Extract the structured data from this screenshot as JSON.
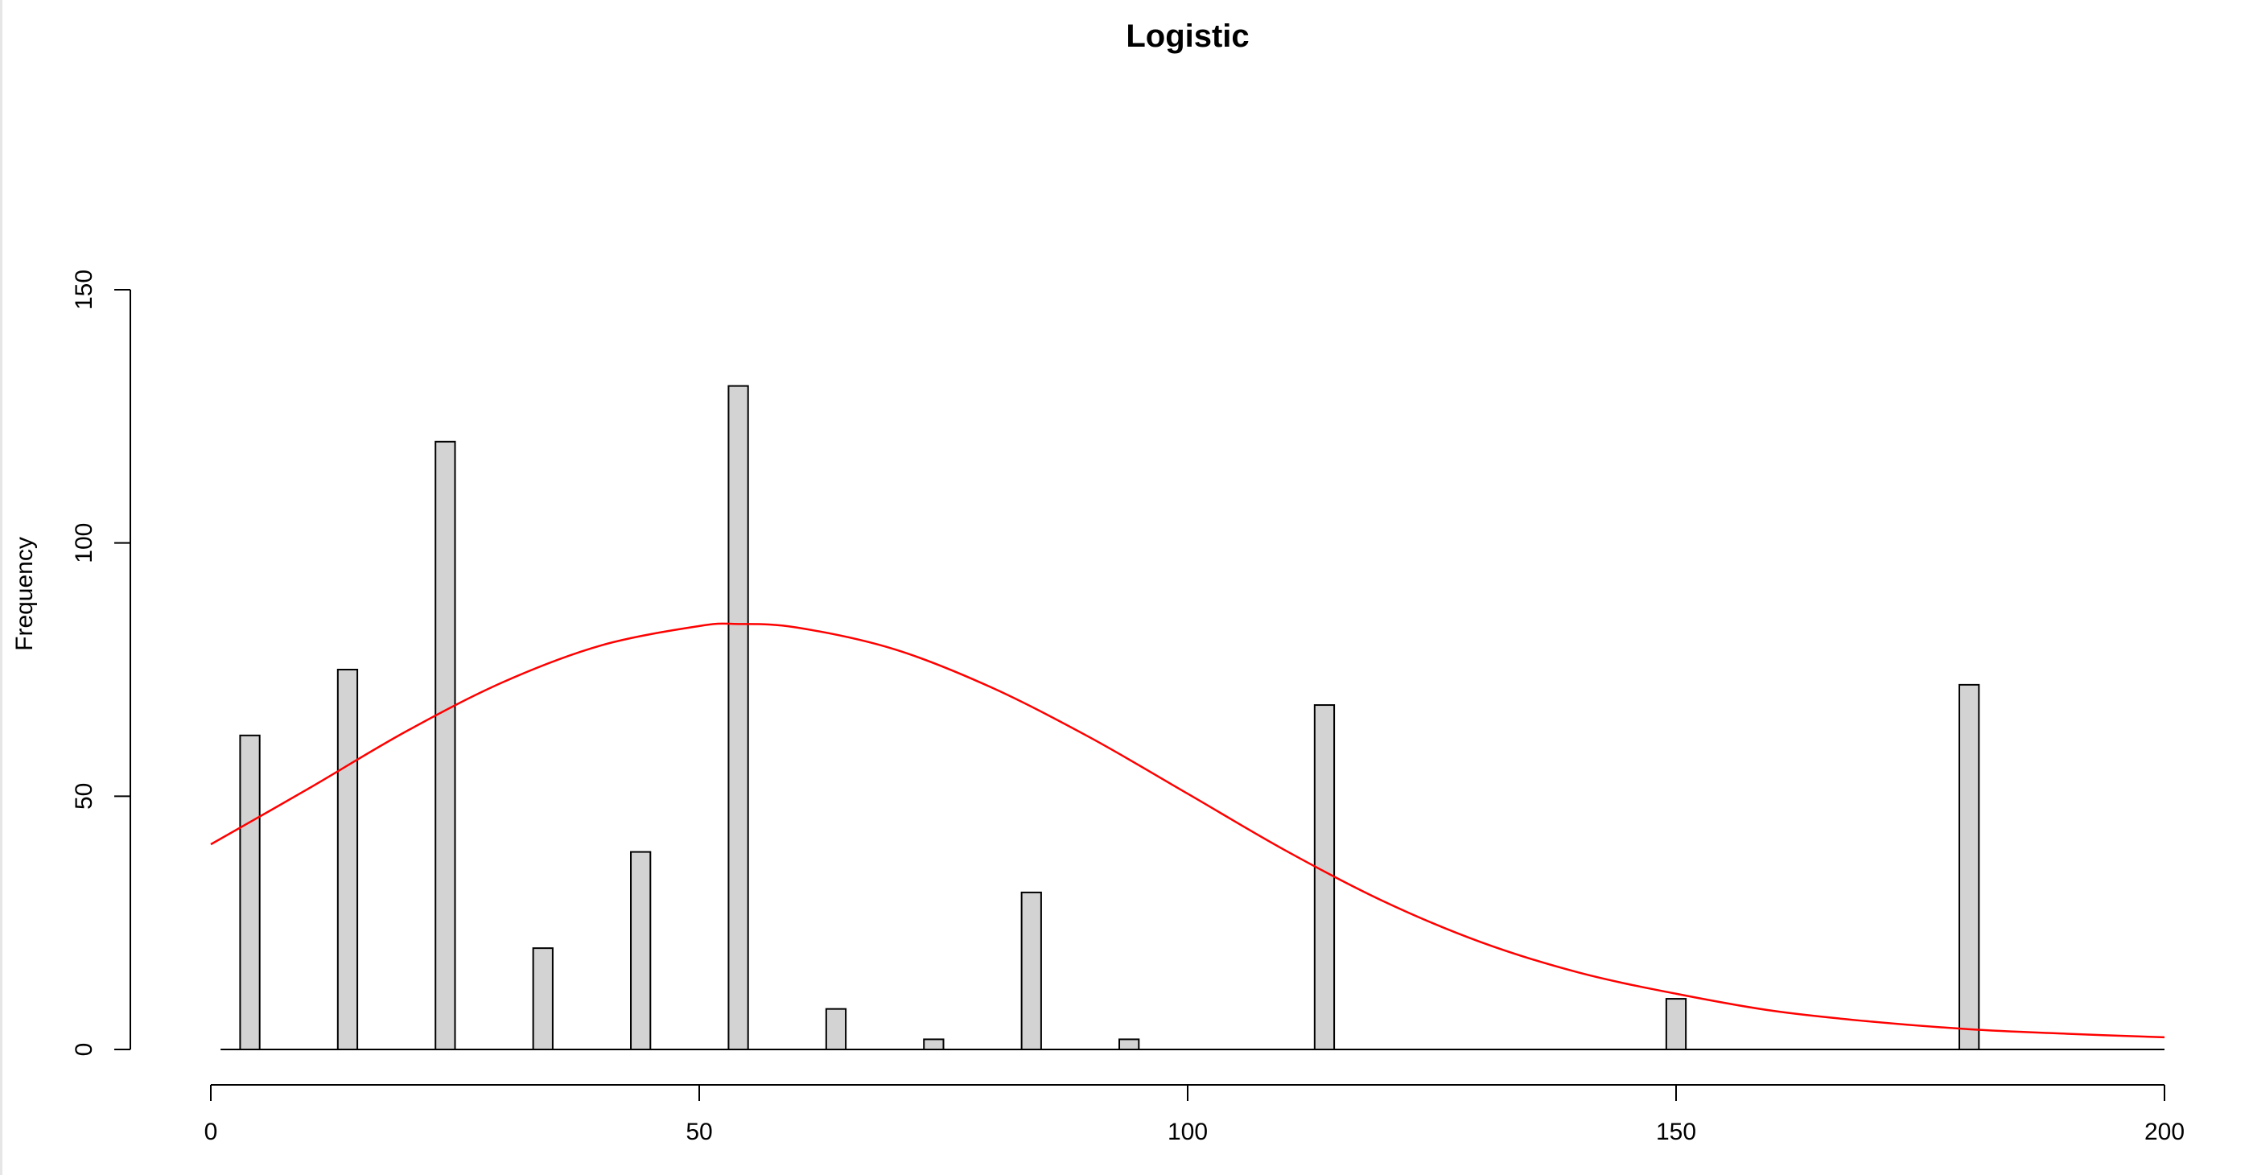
{
  "chart_data": {
    "type": "bar",
    "title": "Logistic",
    "xlabel": "",
    "ylabel": "Frequency",
    "xlim": [
      0,
      200
    ],
    "ylim": [
      0,
      150
    ],
    "x_ticks": [
      "0",
      "50",
      "100",
      "150",
      "200"
    ],
    "y_ticks": [
      "0",
      "50",
      "100",
      "150"
    ],
    "grid": false,
    "legend": "none",
    "bars": {
      "name": "",
      "color": "#d3d3d3",
      "x": [
        4,
        14,
        24,
        34,
        44,
        54,
        64,
        74,
        84,
        94,
        114,
        150,
        180
      ],
      "width": 2,
      "values": [
        62,
        75,
        120,
        20,
        39,
        131,
        8,
        2,
        31,
        2,
        68,
        10,
        72
      ]
    },
    "baseline": {
      "x_range": [
        1,
        200
      ],
      "value": 0
    },
    "curve": {
      "name": "",
      "type": "line",
      "color": "#ff0000",
      "x": [
        0,
        10,
        20,
        30,
        40,
        50,
        54,
        60,
        70,
        80,
        90,
        100,
        110,
        120,
        130,
        140,
        150,
        160,
        170,
        180,
        190,
        200
      ],
      "values": [
        40.5,
        51.5,
        62.8,
        72.6,
        79.8,
        83.6,
        84.0,
        83.3,
        79.0,
        71.4,
        61.6,
        50.5,
        39.3,
        29.3,
        21.2,
        15.2,
        11.0,
        7.6,
        5.5,
        4.0,
        3.1,
        2.4
      ]
    }
  }
}
